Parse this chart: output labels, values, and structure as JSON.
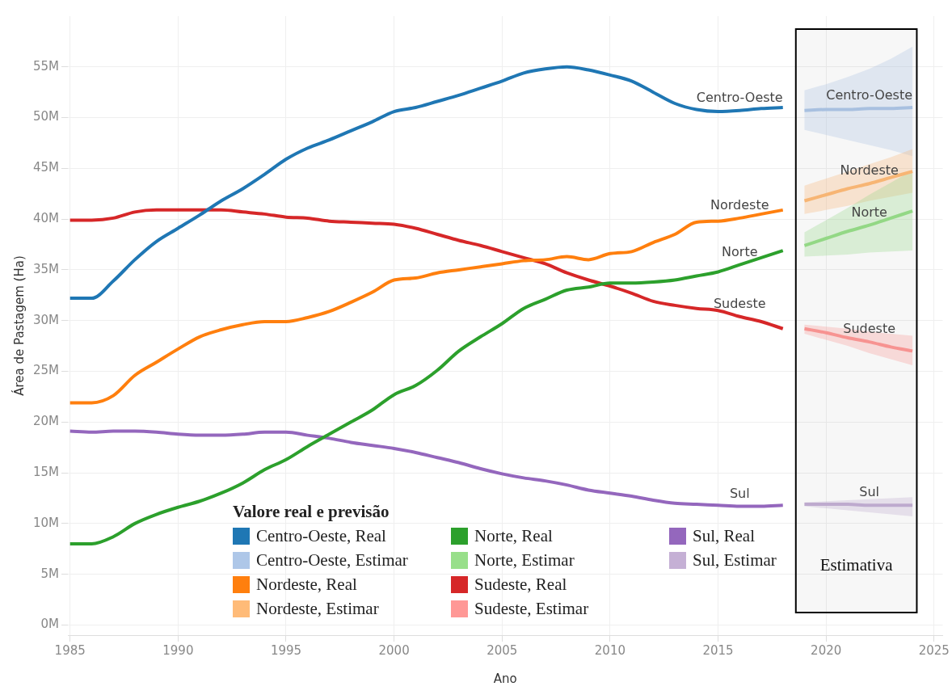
{
  "chart_data": {
    "type": "line",
    "xlabel": "Ano",
    "ylabel": "Área de Pastagem (Ha)",
    "legend_title": "Valore real e previsão",
    "legend": "bottom",
    "grid": true,
    "xlim": [
      1984.9,
      2025.4
    ],
    "xticks": [
      1985,
      1990,
      1995,
      2000,
      2005,
      2010,
      2015,
      2020,
      2025
    ],
    "ylim": [
      -1,
      60
    ],
    "yticks": [
      {
        "value": 0,
        "label": "0M"
      },
      {
        "value": 5,
        "label": "5M"
      },
      {
        "value": 10,
        "label": "10M"
      },
      {
        "value": 15,
        "label": "15M"
      },
      {
        "value": 20,
        "label": "20M"
      },
      {
        "value": 25,
        "label": "25M"
      },
      {
        "value": 30,
        "label": "30M"
      },
      {
        "value": 35,
        "label": "35M"
      },
      {
        "value": 40,
        "label": "40M"
      },
      {
        "value": 45,
        "label": "45M"
      },
      {
        "value": 50,
        "label": "50M"
      },
      {
        "value": 55,
        "label": "55M"
      }
    ],
    "series": [
      {
        "name": "Centro-Oeste, Real",
        "color": "#1f77b4",
        "x": [
          1985,
          1986,
          1987,
          1988,
          1989,
          1990,
          1991,
          1992,
          1993,
          1994,
          1995,
          1996,
          1997,
          1998,
          1999,
          2000,
          2001,
          2002,
          2003,
          2004,
          2005,
          2006,
          2007,
          2008,
          2009,
          2010,
          2011,
          2012,
          2013,
          2014,
          2015,
          2016,
          2017,
          2018
        ],
        "values": [
          32.2,
          32.2,
          33.9,
          36.0,
          37.8,
          39.1,
          40.4,
          41.8,
          43.0,
          44.4,
          45.9,
          47.0,
          47.8,
          48.7,
          49.6,
          50.6,
          51.0,
          51.6,
          52.2,
          52.9,
          53.6,
          54.4,
          54.8,
          55.0,
          54.7,
          54.2,
          53.6,
          52.5,
          51.4,
          50.8,
          50.6,
          50.7,
          50.9,
          51.0
        ]
      },
      {
        "name": "Centro-Oeste, Estimar",
        "color": "#aec7e8",
        "x": [
          2019,
          2020,
          2021,
          2022,
          2023,
          2024
        ],
        "values": [
          50.7,
          50.8,
          50.8,
          50.9,
          50.9,
          51.0
        ],
        "lower": [
          48.8,
          48.3,
          47.8,
          47.3,
          46.8,
          46.2
        ],
        "upper": [
          52.7,
          53.3,
          54.0,
          54.8,
          55.8,
          57.0
        ]
      },
      {
        "name": "Nordeste, Real",
        "color": "#ff7f0e",
        "x": [
          1985,
          1986,
          1987,
          1988,
          1989,
          1990,
          1991,
          1992,
          1993,
          1994,
          1995,
          1996,
          1997,
          1998,
          1999,
          2000,
          2001,
          2002,
          2003,
          2004,
          2005,
          2006,
          2007,
          2008,
          2009,
          2010,
          2011,
          2012,
          2013,
          2014,
          2015,
          2016,
          2017,
          2018
        ],
        "values": [
          21.9,
          21.9,
          22.6,
          24.6,
          25.9,
          27.2,
          28.4,
          29.1,
          29.6,
          29.9,
          29.9,
          30.3,
          30.9,
          31.8,
          32.8,
          34.0,
          34.2,
          34.7,
          35.0,
          35.3,
          35.6,
          35.9,
          36.0,
          36.3,
          36.0,
          36.6,
          36.8,
          37.7,
          38.5,
          39.7,
          39.8,
          40.1,
          40.5,
          40.9
        ]
      },
      {
        "name": "Nordeste, Estimar",
        "color": "#ffbb78",
        "x": [
          2019,
          2020,
          2021,
          2022,
          2023,
          2024
        ],
        "values": [
          41.8,
          42.4,
          43.0,
          43.5,
          44.1,
          44.7
        ],
        "lower": [
          40.5,
          40.9,
          41.3,
          41.8,
          42.2,
          42.6
        ],
        "upper": [
          43.3,
          44.0,
          44.7,
          45.4,
          46.1,
          46.9
        ]
      },
      {
        "name": "Norte, Real",
        "color": "#2ca02c",
        "x": [
          1985,
          1986,
          1987,
          1988,
          1989,
          1990,
          1991,
          1992,
          1993,
          1994,
          1995,
          1996,
          1997,
          1998,
          1999,
          2000,
          2001,
          2002,
          2003,
          2004,
          2005,
          2006,
          2007,
          2008,
          2009,
          2010,
          2011,
          2012,
          2013,
          2014,
          2015,
          2016,
          2017,
          2018
        ],
        "values": [
          8.0,
          8.0,
          8.7,
          10.0,
          10.9,
          11.6,
          12.2,
          13.0,
          14.0,
          15.3,
          16.3,
          17.6,
          18.8,
          20.0,
          21.2,
          22.7,
          23.6,
          25.1,
          27.0,
          28.4,
          29.7,
          31.2,
          32.1,
          33.0,
          33.3,
          33.7,
          33.7,
          33.8,
          34.0,
          34.4,
          34.8,
          35.5,
          36.2,
          36.9
        ]
      },
      {
        "name": "Norte, Estimar",
        "color": "#98df8a",
        "x": [
          2019,
          2020,
          2021,
          2022,
          2023,
          2024
        ],
        "values": [
          37.4,
          38.1,
          38.8,
          39.4,
          40.1,
          40.8
        ],
        "lower": [
          36.3,
          36.4,
          36.5,
          36.7,
          36.8,
          36.9
        ],
        "upper": [
          38.7,
          39.9,
          41.1,
          42.4,
          43.6,
          44.8
        ]
      },
      {
        "name": "Sudeste, Real",
        "color": "#d62728",
        "x": [
          1985,
          1986,
          1987,
          1988,
          1989,
          1990,
          1991,
          1992,
          1993,
          1994,
          1995,
          1996,
          1997,
          1998,
          1999,
          2000,
          2001,
          2002,
          2003,
          2004,
          2005,
          2006,
          2007,
          2008,
          2009,
          2010,
          2011,
          2012,
          2013,
          2014,
          2015,
          2016,
          2017,
          2018
        ],
        "values": [
          39.9,
          39.9,
          40.1,
          40.7,
          40.9,
          40.9,
          40.9,
          40.9,
          40.7,
          40.5,
          40.2,
          40.1,
          39.8,
          39.7,
          39.6,
          39.5,
          39.1,
          38.5,
          37.9,
          37.4,
          36.8,
          36.2,
          35.6,
          34.7,
          34.0,
          33.4,
          32.7,
          31.9,
          31.5,
          31.2,
          31.0,
          30.4,
          29.9,
          29.2
        ]
      },
      {
        "name": "Sudeste, Estimar",
        "color": "#ff9896",
        "x": [
          2019,
          2020,
          2021,
          2022,
          2023,
          2024
        ],
        "values": [
          29.2,
          28.8,
          28.3,
          27.9,
          27.4,
          27.0
        ],
        "lower": [
          28.7,
          28.1,
          27.5,
          26.8,
          26.2,
          25.6
        ],
        "upper": [
          29.6,
          29.4,
          29.2,
          28.9,
          28.7,
          28.5
        ]
      },
      {
        "name": "Sul, Real",
        "color": "#9467bd",
        "x": [
          1985,
          1986,
          1987,
          1988,
          1989,
          1990,
          1991,
          1992,
          1993,
          1994,
          1995,
          1996,
          1997,
          1998,
          1999,
          2000,
          2001,
          2002,
          2003,
          2004,
          2005,
          2006,
          2007,
          2008,
          2009,
          2010,
          2011,
          2012,
          2013,
          2014,
          2015,
          2016,
          2017,
          2018
        ],
        "values": [
          19.1,
          19.0,
          19.1,
          19.1,
          19.0,
          18.8,
          18.7,
          18.7,
          18.8,
          19.0,
          19.0,
          18.7,
          18.4,
          18.0,
          17.7,
          17.4,
          17.0,
          16.5,
          16.0,
          15.4,
          14.9,
          14.5,
          14.2,
          13.8,
          13.3,
          13.0,
          12.7,
          12.3,
          12.0,
          11.9,
          11.8,
          11.7,
          11.7,
          11.8
        ]
      },
      {
        "name": "Sul, Estimar",
        "color": "#c5b0d5",
        "x": [
          2019,
          2020,
          2021,
          2022,
          2023,
          2024
        ],
        "values": [
          11.9,
          11.9,
          11.9,
          11.8,
          11.8,
          11.8
        ],
        "lower": [
          11.7,
          11.5,
          11.3,
          11.1,
          10.9,
          10.7
        ],
        "upper": [
          12.1,
          12.2,
          12.3,
          12.4,
          12.5,
          12.6
        ]
      }
    ],
    "bands": [
      {
        "axis": "x",
        "from": 2018.6,
        "to": 2024.2,
        "label": "Estimativa",
        "color": "#000000"
      }
    ],
    "annotations": [
      "Centro-Oeste",
      "Nordeste",
      "Norte",
      "Sudeste",
      "Sul",
      "Centro-Oeste",
      "Nordeste",
      "Norte",
      "Sudeste",
      "Sul"
    ]
  }
}
